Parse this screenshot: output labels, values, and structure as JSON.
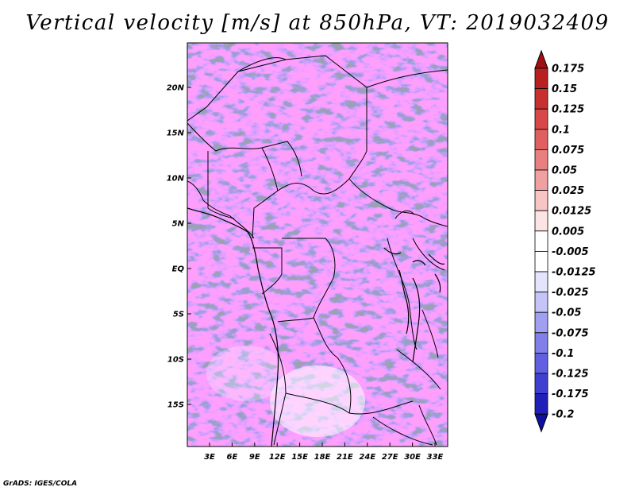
{
  "title": "Vertical velocity [m/s] at 850hPa, VT: 2019032409",
  "credit": "GrADS: IGES/COLA",
  "map": {
    "lat_labels": [
      "20N",
      "15N",
      "10N",
      "5N",
      "EQ",
      "5S",
      "10S",
      "15S"
    ],
    "lon_labels": [
      "3E",
      "6E",
      "9E",
      "12E",
      "15E",
      "18E",
      "21E",
      "24E",
      "27E",
      "30E",
      "33E"
    ]
  },
  "colorbar": {
    "labels": [
      "0.175",
      "0.15",
      "0.125",
      "0.1",
      "0.075",
      "0.05",
      "0.025",
      "0.0125",
      "0.005",
      "-0.005",
      "-0.0125",
      "-0.025",
      "-0.05",
      "-0.075",
      "-0.1",
      "-0.125",
      "-0.175",
      "-0.2"
    ],
    "colors": [
      "#a01010",
      "#b82020",
      "#c83030",
      "#d84848",
      "#e06060",
      "#e88080",
      "#f0a0a0",
      "#f8c4c4",
      "#fce4e4",
      "#ffffff",
      "#e4e4fc",
      "#c4c4f8",
      "#a0a0f0",
      "#8080e8",
      "#6060e0",
      "#4040d0",
      "#2020b8",
      "#1010a0"
    ]
  }
}
